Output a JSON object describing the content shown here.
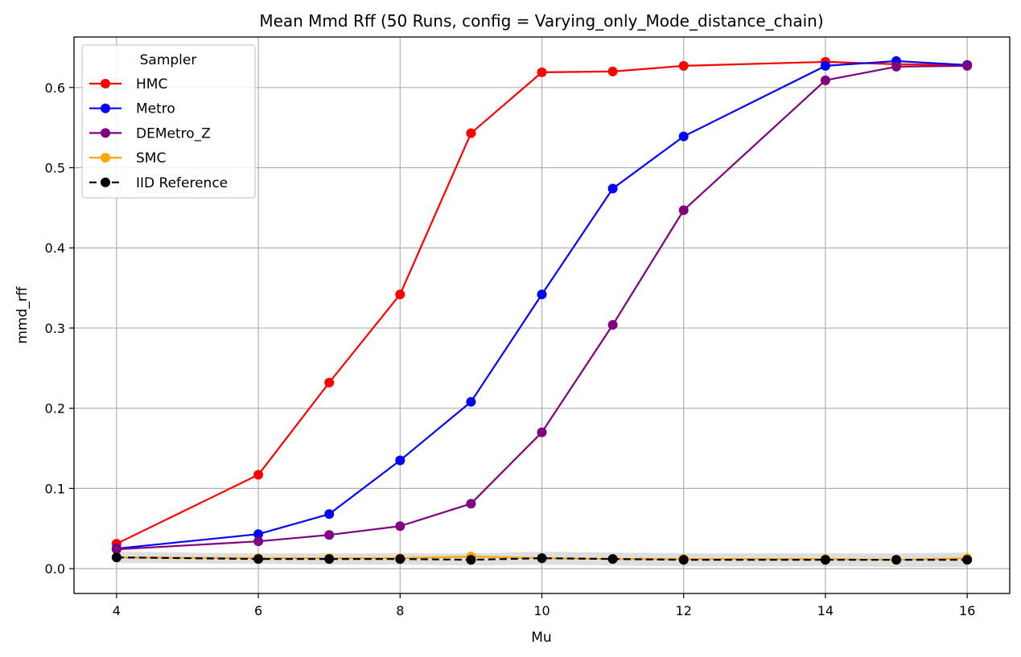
{
  "chart_data": {
    "type": "line",
    "title": "Mean Mmd Rff (50 Runs, config = Varying_only_Mode_distance_chain)",
    "xlabel": "Mu",
    "ylabel": "mmd_rff",
    "x": [
      4,
      6,
      7,
      8,
      9,
      10,
      11,
      12,
      14,
      15,
      16
    ],
    "xticks": [
      4,
      6,
      8,
      10,
      12,
      14,
      16
    ],
    "yticks": [
      0.0,
      0.1,
      0.2,
      0.3,
      0.4,
      0.5,
      0.6
    ],
    "xlim": [
      3.4,
      16.6
    ],
    "ylim": [
      -0.031,
      0.663
    ],
    "grid": true,
    "legend": {
      "title": "Sampler",
      "placement": "upper left"
    },
    "series": [
      {
        "name": "HMC",
        "color": "#ff0000",
        "style": "solid",
        "values": [
          0.031,
          0.117,
          0.232,
          0.342,
          0.543,
          0.619,
          0.62,
          0.627,
          0.632,
          0.629,
          0.628
        ]
      },
      {
        "name": "Metro",
        "color": "#0000ff",
        "style": "solid",
        "values": [
          0.025,
          0.043,
          0.068,
          0.135,
          0.208,
          0.342,
          0.474,
          0.539,
          0.627,
          0.633,
          0.628
        ]
      },
      {
        "name": "DEMetro_Z",
        "color": "#800080",
        "style": "solid",
        "values": [
          0.024,
          0.034,
          0.042,
          0.053,
          0.081,
          0.17,
          0.304,
          0.447,
          0.609,
          0.626,
          0.627
        ]
      },
      {
        "name": "SMC",
        "color": "#ffa500",
        "style": "solid",
        "values": [
          0.014,
          0.013,
          0.013,
          0.013,
          0.015,
          0.013,
          0.012,
          0.012,
          0.012,
          0.011,
          0.013
        ]
      },
      {
        "name": "IID Reference",
        "color": "#000000",
        "style": "dashed",
        "values": [
          0.014,
          0.012,
          0.012,
          0.012,
          0.011,
          0.013,
          0.012,
          0.011,
          0.011,
          0.011,
          0.011
        ],
        "band_lower": [
          0.007,
          0.006,
          0.005,
          0.005,
          0.004,
          0.005,
          0.004,
          0.003,
          0.003,
          0.002,
          0.002
        ],
        "band_upper": [
          0.021,
          0.019,
          0.019,
          0.019,
          0.019,
          0.021,
          0.02,
          0.019,
          0.019,
          0.019,
          0.02
        ]
      }
    ]
  }
}
